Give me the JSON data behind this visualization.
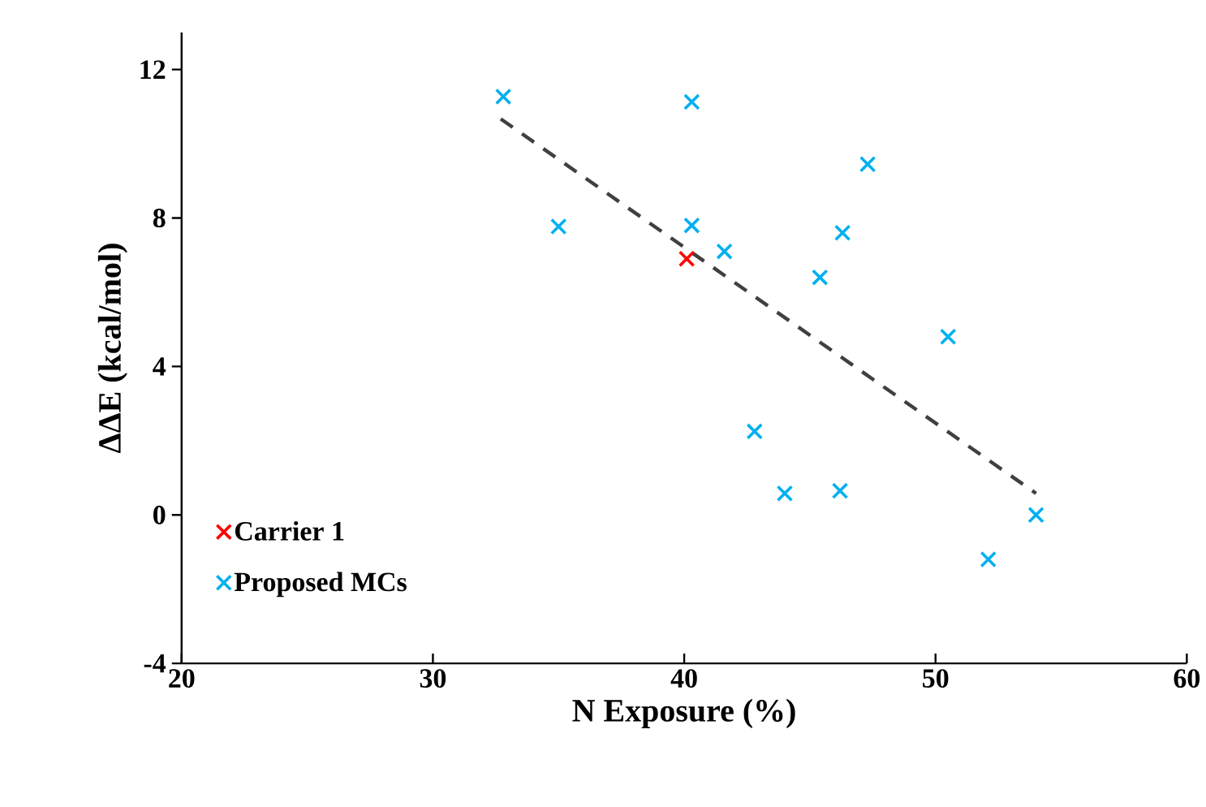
{
  "chart_data": {
    "type": "scatter",
    "xlabel": "N Exposure (%)",
    "ylabel": "ΔΔE (kcal/mol)",
    "xlim": [
      20,
      60
    ],
    "xticks": [
      20,
      30,
      40,
      50,
      60
    ],
    "ylim": [
      -4,
      13
    ],
    "yticks": [
      -4,
      0,
      4,
      8,
      12
    ],
    "marker": "cross",
    "legend": "bottom left",
    "grid": false,
    "series": [
      {
        "name": "Carrier 1",
        "color": "#ff0000",
        "x": [
          40.1
        ],
        "values": [
          6.9
        ]
      },
      {
        "name": "Proposed MCs",
        "color": "#00b0f0",
        "x": [
          32.8,
          35.0,
          40.3,
          40.3,
          41.6,
          42.8,
          44.0,
          45.4,
          46.2,
          46.3,
          47.3,
          50.5,
          52.1,
          54.0
        ],
        "values": [
          11.27,
          7.77,
          11.13,
          7.8,
          7.1,
          2.25,
          0.58,
          6.4,
          0.65,
          7.6,
          9.45,
          4.8,
          -1.2,
          0.0
        ]
      },
      {
        "type": "line",
        "color": "#404040",
        "marker": "none",
        "line_style": "dashed",
        "x": [
          32.7,
          54.0
        ],
        "values": [
          10.67,
          0.58
        ]
      }
    ]
  }
}
